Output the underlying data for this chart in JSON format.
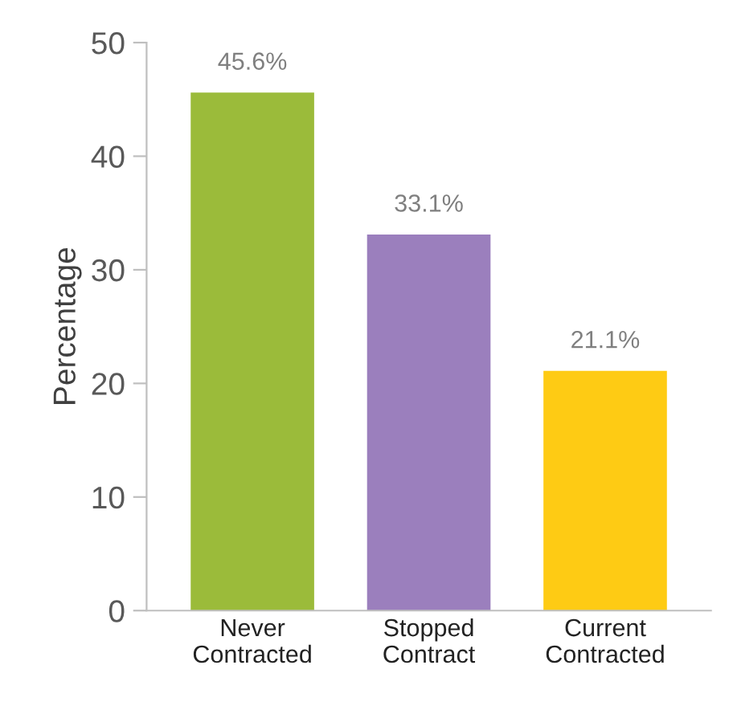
{
  "chart_data": {
    "type": "bar",
    "ylabel": "Percentage",
    "categories": [
      "Never\nContracted",
      "Stopped\nContract",
      "Current\nContracted"
    ],
    "values": [
      45.6,
      33.1,
      21.1
    ],
    "colors": [
      "#9bbb3a",
      "#9b7fbd",
      "#fecb14"
    ],
    "value_labels": [
      "45.6%",
      "33.1%",
      "21.1%"
    ],
    "ylim": [
      0,
      50
    ],
    "yticks": [
      0,
      10,
      20,
      30,
      40,
      50
    ],
    "grid": false,
    "legend": false
  }
}
